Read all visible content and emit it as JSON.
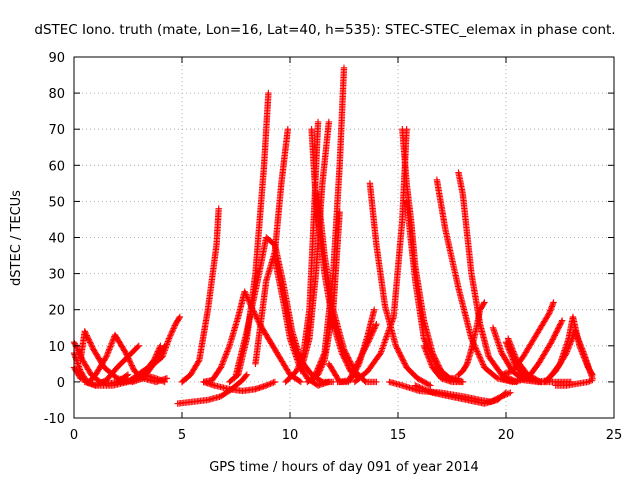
{
  "chart_data": {
    "type": "scatter",
    "title": "dSTEC Iono. truth (mate, Lon=16, Lat=40, h=535): STEC-STEC_elemax in phase cont.",
    "xlabel": "GPS time / hours of day 091 of year 2014",
    "ylabel": "dSTEC  / TECUs",
    "xlim": [
      0,
      25
    ],
    "ylim": [
      -10,
      90
    ],
    "xticks": [
      0,
      5,
      10,
      15,
      20,
      25
    ],
    "yticks": [
      -10,
      0,
      10,
      20,
      30,
      40,
      50,
      60,
      70,
      80,
      90
    ],
    "grid": true,
    "marker": "+",
    "color": "#ff0000",
    "series": [
      {
        "points": [
          [
            0.0,
            8
          ],
          [
            0.3,
            3
          ],
          [
            0.6,
            0
          ],
          [
            1.0,
            -1
          ],
          [
            1.5,
            0.5
          ],
          [
            2.0,
            4
          ],
          [
            2.5,
            7
          ],
          [
            3.0,
            10
          ]
        ]
      },
      {
        "points": [
          [
            0.0,
            11
          ],
          [
            0.4,
            6
          ],
          [
            0.8,
            2
          ],
          [
            1.2,
            0
          ],
          [
            1.6,
            -0.5
          ],
          [
            2.0,
            0
          ],
          [
            2.5,
            2
          ]
        ]
      },
      {
        "points": [
          [
            0.0,
            4
          ],
          [
            0.3,
            1
          ],
          [
            0.7,
            0
          ],
          [
            1.0,
            2
          ],
          [
            1.5,
            7
          ],
          [
            1.9,
            13
          ],
          [
            2.4,
            8
          ],
          [
            2.8,
            3
          ],
          [
            3.2,
            1
          ],
          [
            3.8,
            0
          ],
          [
            4.3,
            1
          ]
        ]
      },
      {
        "points": [
          [
            0.3,
            6
          ],
          [
            0.5,
            14
          ],
          [
            0.9,
            9
          ],
          [
            1.4,
            4
          ],
          [
            2.0,
            1
          ],
          [
            2.7,
            0
          ],
          [
            3.2,
            1
          ],
          [
            3.7,
            5
          ],
          [
            4.2,
            10
          ]
        ]
      },
      {
        "points": [
          [
            0.5,
            0
          ],
          [
            1.0,
            -1
          ],
          [
            1.8,
            -1
          ],
          [
            2.5,
            0
          ],
          [
            3.2,
            3
          ],
          [
            3.7,
            5
          ],
          [
            4.1,
            7
          ],
          [
            4.4,
            12
          ],
          [
            4.7,
            16
          ],
          [
            4.9,
            18
          ]
        ]
      },
      {
        "points": [
          [
            2.2,
            0
          ],
          [
            2.8,
            0.5
          ],
          [
            3.3,
            3
          ],
          [
            3.7,
            6
          ],
          [
            4.0,
            10
          ]
        ]
      },
      {
        "points": [
          [
            2.8,
            1
          ],
          [
            3.2,
            2
          ],
          [
            3.8,
            1
          ],
          [
            4.2,
            0
          ]
        ]
      },
      {
        "points": [
          [
            4.8,
            -6
          ],
          [
            5.5,
            -5.5
          ],
          [
            6.2,
            -5
          ],
          [
            6.8,
            -4
          ],
          [
            7.3,
            -2
          ],
          [
            7.8,
            0.5
          ],
          [
            8.0,
            2
          ]
        ]
      },
      {
        "points": [
          [
            6.0,
            0
          ],
          [
            6.5,
            -1
          ],
          [
            7.2,
            -2
          ],
          [
            7.8,
            -2.5
          ],
          [
            8.4,
            -2
          ],
          [
            8.9,
            -1
          ],
          [
            9.3,
            0
          ]
        ]
      },
      {
        "points": [
          [
            5.0,
            0
          ],
          [
            5.4,
            2
          ],
          [
            5.8,
            6
          ],
          [
            6.2,
            20
          ],
          [
            6.6,
            38
          ],
          [
            6.7,
            48
          ]
        ]
      },
      {
        "points": [
          [
            6.0,
            0
          ],
          [
            6.4,
            0.5
          ],
          [
            6.8,
            4
          ],
          [
            7.2,
            10
          ],
          [
            7.6,
            18
          ],
          [
            7.9,
            25
          ],
          [
            8.2,
            21
          ],
          [
            8.6,
            16
          ],
          [
            9.1,
            11
          ],
          [
            9.6,
            6
          ],
          [
            10.0,
            2
          ],
          [
            10.5,
            0
          ]
        ]
      },
      {
        "points": [
          [
            7.2,
            0
          ],
          [
            7.6,
            2
          ],
          [
            8.0,
            12
          ],
          [
            8.4,
            30
          ],
          [
            8.8,
            60
          ],
          [
            9.0,
            80
          ]
        ]
      },
      {
        "points": [
          [
            7.5,
            2
          ],
          [
            8.0,
            14
          ],
          [
            8.5,
            28
          ],
          [
            8.9,
            40
          ],
          [
            9.3,
            38
          ],
          [
            9.7,
            27
          ],
          [
            10.1,
            14
          ],
          [
            10.5,
            6
          ],
          [
            11.0,
            2
          ],
          [
            11.5,
            0
          ],
          [
            12.0,
            0
          ]
        ]
      },
      {
        "points": [
          [
            8.4,
            5
          ],
          [
            8.9,
            28
          ],
          [
            9.3,
            36
          ],
          [
            9.6,
            55
          ],
          [
            9.9,
            70
          ]
        ]
      },
      {
        "points": [
          [
            9.3,
            34
          ],
          [
            9.7,
            22
          ],
          [
            10.0,
            12
          ],
          [
            10.4,
            5
          ],
          [
            10.8,
            1
          ],
          [
            11.3,
            -1
          ],
          [
            11.8,
            0
          ]
        ]
      },
      {
        "points": [
          [
            9.8,
            0
          ],
          [
            10.3,
            3
          ],
          [
            10.6,
            7
          ],
          [
            10.9,
            20
          ],
          [
            11.1,
            45
          ],
          [
            11.3,
            72
          ]
        ]
      },
      {
        "points": [
          [
            11.0,
            70
          ],
          [
            11.2,
            50
          ],
          [
            11.6,
            30
          ],
          [
            12.0,
            16
          ],
          [
            12.4,
            8
          ],
          [
            12.8,
            3
          ],
          [
            13.2,
            1
          ]
        ]
      },
      {
        "points": [
          [
            10.5,
            3
          ],
          [
            10.9,
            12
          ],
          [
            11.2,
            30
          ],
          [
            11.5,
            55
          ],
          [
            11.8,
            72
          ]
        ]
      },
      {
        "points": [
          [
            11.3,
            52
          ],
          [
            11.6,
            35
          ],
          [
            12.0,
            20
          ],
          [
            12.5,
            9
          ],
          [
            13.0,
            3
          ],
          [
            13.5,
            0
          ],
          [
            14.0,
            0
          ]
        ]
      },
      {
        "points": [
          [
            10.8,
            0
          ],
          [
            11.3,
            2
          ],
          [
            11.6,
            6
          ],
          [
            12.0,
            20
          ],
          [
            12.3,
            47
          ]
        ]
      },
      {
        "points": [
          [
            11.1,
            1
          ],
          [
            11.6,
            8
          ],
          [
            12.0,
            30
          ],
          [
            12.3,
            60
          ],
          [
            12.5,
            87
          ]
        ]
      },
      {
        "points": [
          [
            11.8,
            5
          ],
          [
            12.3,
            0
          ],
          [
            12.8,
            0.5
          ],
          [
            13.2,
            5
          ],
          [
            13.6,
            13
          ],
          [
            13.9,
            20
          ]
        ]
      },
      {
        "points": [
          [
            12.2,
            0
          ],
          [
            12.7,
            0
          ],
          [
            13.2,
            6
          ],
          [
            13.7,
            12
          ],
          [
            14.0,
            16
          ]
        ]
      },
      {
        "points": [
          [
            13.7,
            55
          ],
          [
            14.0,
            38
          ],
          [
            14.4,
            21
          ],
          [
            14.9,
            10
          ],
          [
            15.4,
            4
          ],
          [
            15.9,
            1
          ],
          [
            16.5,
            -1
          ]
        ]
      },
      {
        "points": [
          [
            13.0,
            0
          ],
          [
            13.6,
            3
          ],
          [
            14.2,
            8
          ],
          [
            14.8,
            18
          ],
          [
            15.2,
            45
          ],
          [
            15.4,
            70
          ]
        ]
      },
      {
        "points": [
          [
            15.2,
            70
          ],
          [
            15.4,
            55
          ],
          [
            15.6,
            45
          ],
          [
            15.8,
            32
          ],
          [
            16.2,
            17
          ],
          [
            16.6,
            8
          ],
          [
            17.0,
            3
          ],
          [
            17.4,
            1
          ],
          [
            17.8,
            1
          ]
        ]
      },
      {
        "points": [
          [
            15.4,
            50
          ],
          [
            15.8,
            28
          ],
          [
            16.2,
            12
          ],
          [
            16.8,
            4
          ],
          [
            17.3,
            1
          ],
          [
            18.0,
            0
          ]
        ]
      },
      {
        "points": [
          [
            16.2,
            10
          ],
          [
            16.6,
            4
          ],
          [
            17.0,
            1
          ],
          [
            17.5,
            0
          ],
          [
            18.0,
            0
          ]
        ]
      },
      {
        "points": [
          [
            16.8,
            56
          ],
          [
            17.2,
            42
          ],
          [
            17.8,
            26
          ],
          [
            18.4,
            12
          ],
          [
            19.0,
            4
          ],
          [
            19.6,
            1
          ],
          [
            20.3,
            0
          ]
        ]
      },
      {
        "points": [
          [
            17.8,
            58
          ],
          [
            18.0,
            52
          ],
          [
            18.4,
            30
          ],
          [
            18.8,
            16
          ],
          [
            19.2,
            7
          ],
          [
            19.8,
            2
          ],
          [
            20.5,
            0
          ]
        ]
      },
      {
        "points": [
          [
            14.6,
            0
          ],
          [
            15.2,
            -1
          ],
          [
            16.0,
            -2.5
          ],
          [
            17.0,
            -3
          ],
          [
            18.0,
            -4
          ],
          [
            18.8,
            -5
          ],
          [
            19.3,
            -5.5
          ],
          [
            19.8,
            -4
          ],
          [
            20.2,
            -3
          ]
        ]
      },
      {
        "points": [
          [
            15.8,
            -1
          ],
          [
            16.6,
            -3
          ],
          [
            17.4,
            -4
          ],
          [
            18.2,
            -5
          ],
          [
            19.0,
            -6
          ],
          [
            19.6,
            -5
          ],
          [
            20.0,
            -3
          ]
        ]
      },
      {
        "points": [
          [
            19.0,
            22
          ],
          [
            18.8,
            20
          ],
          [
            18.6,
            14
          ],
          [
            18.4,
            9
          ],
          [
            18.2,
            5
          ],
          [
            18.0,
            3
          ],
          [
            17.8,
            2
          ]
        ]
      },
      {
        "points": [
          [
            19.4,
            15
          ],
          [
            19.8,
            8
          ],
          [
            20.3,
            3
          ],
          [
            20.8,
            0.5
          ],
          [
            21.5,
            0
          ],
          [
            22.0,
            0.5
          ]
        ]
      },
      {
        "points": [
          [
            19.8,
            1
          ],
          [
            20.4,
            0
          ],
          [
            21.0,
            1
          ],
          [
            21.5,
            5
          ],
          [
            22.1,
            11
          ],
          [
            22.6,
            17
          ]
        ]
      },
      {
        "points": [
          [
            19.8,
            2
          ],
          [
            20.3,
            3
          ],
          [
            20.8,
            7
          ],
          [
            21.4,
            13
          ],
          [
            22.0,
            19
          ],
          [
            22.2,
            22
          ]
        ]
      },
      {
        "points": [
          [
            20.0,
            11
          ],
          [
            20.4,
            5
          ],
          [
            20.9,
            1
          ],
          [
            21.5,
            0
          ],
          [
            22.3,
            0
          ],
          [
            23.0,
            0
          ]
        ]
      },
      {
        "points": [
          [
            20.1,
            12
          ],
          [
            20.5,
            6
          ],
          [
            21.0,
            2
          ],
          [
            21.6,
            0
          ]
        ]
      },
      {
        "points": [
          [
            21.8,
            0
          ],
          [
            22.3,
            3
          ],
          [
            22.8,
            8
          ],
          [
            23.2,
            14
          ],
          [
            23.6,
            8
          ],
          [
            24.0,
            1
          ]
        ]
      },
      {
        "points": [
          [
            22.0,
            1
          ],
          [
            22.5,
            5
          ],
          [
            22.9,
            12
          ],
          [
            23.1,
            18
          ],
          [
            23.4,
            10
          ],
          [
            23.8,
            4
          ],
          [
            24.0,
            2
          ]
        ]
      },
      {
        "points": [
          [
            22.3,
            -1
          ],
          [
            22.8,
            -1
          ],
          [
            23.3,
            -0.5
          ],
          [
            23.8,
            0
          ],
          [
            24.0,
            0.5
          ]
        ]
      }
    ]
  }
}
